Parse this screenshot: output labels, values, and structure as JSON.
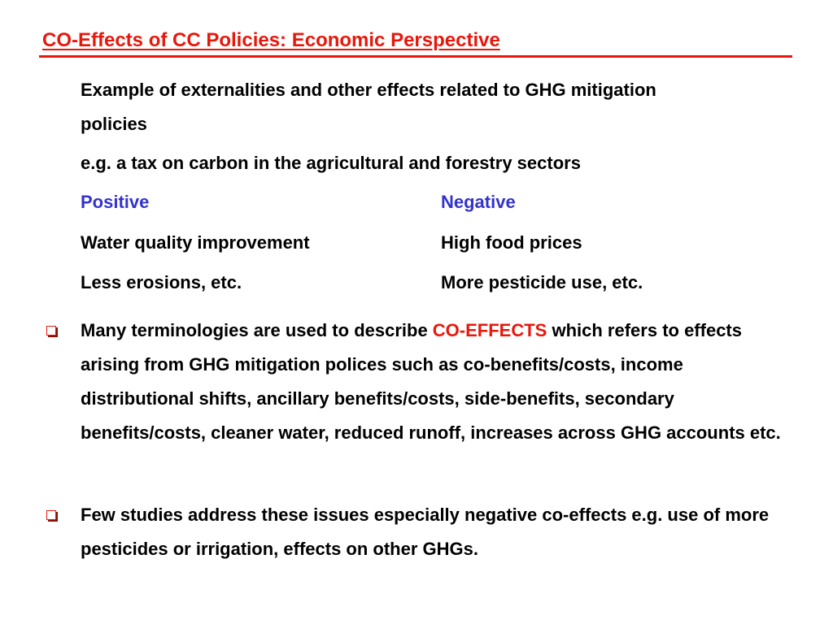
{
  "slide": {
    "title": "CO-Effects of CC Policies: Economic Perspective",
    "intro": {
      "line1": "Example of externalities and other effects related to GHG mitigation",
      "line2": "policies",
      "line3": "e.g. a tax on carbon in the agricultural and forestry sectors"
    },
    "table": {
      "positive_header": "Positive",
      "negative_header": "Negative",
      "rows": [
        {
          "positive": "Water quality improvement",
          "negative": "High food prices"
        },
        {
          "positive": "Less erosions, etc.",
          "negative": "More pesticide use, etc."
        }
      ]
    },
    "bullets": [
      {
        "before": "Many terminologies are used to describe ",
        "highlight": "CO-EFFECTS",
        "after": " which refers to effects arising from GHG mitigation polices such as co-benefits/costs, income distributional shifts, ancillary benefits/costs, side-benefits, secondary benefits/costs, cleaner water, reduced runoff, increases across GHG accounts etc."
      },
      {
        "text": "Few studies address these issues especially negative co-effects e.g. use of more pesticides or irrigation, effects on other GHGs."
      }
    ],
    "colors": {
      "title": "#e8170b",
      "highlight": "#e8170b",
      "column_header": "#3333cc",
      "bullet": "#e8170b"
    },
    "bullet_icon": "hollow-square-bullet"
  }
}
